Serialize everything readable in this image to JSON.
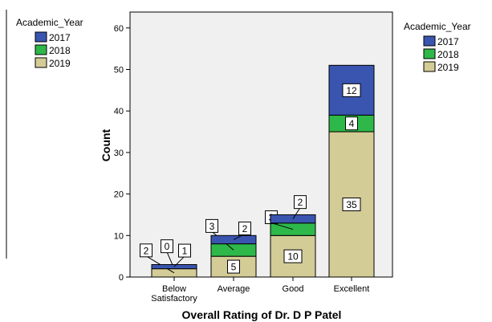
{
  "chart_data": {
    "type": "bar",
    "stacked": true,
    "xlabel": "Overall Rating of Dr. D P Patel",
    "ylabel": "Count",
    "ylim": [
      0,
      60
    ],
    "yticks": [
      "0",
      "10",
      "20",
      "30",
      "40",
      "50",
      "60"
    ],
    "categories": [
      [
        "Below",
        "Satisfactory"
      ],
      [
        "Average"
      ],
      [
        "Good"
      ],
      [
        "Excellent"
      ]
    ],
    "series": [
      {
        "name": "2019",
        "color": "#d4cc96",
        "values": [
          2,
          5,
          10,
          35
        ]
      },
      {
        "name": "2018",
        "color": "#2eb84a",
        "values": [
          0,
          3,
          3,
          4
        ]
      },
      {
        "name": "2017",
        "color": "#3a55b0",
        "values": [
          1,
          2,
          2,
          12
        ]
      }
    ],
    "legend_title": "Academic_Year",
    "legend_order": [
      "2017",
      "2018",
      "2019"
    ],
    "legend_placement": "right",
    "grid": false,
    "plot_background": "#f0f0f0"
  },
  "ghost_legend": {
    "title": "Academic_Year",
    "items": [
      "2017",
      "2018",
      "2019"
    ]
  },
  "axis": {
    "xlabel": "Overall Rating of Dr. D P Patel",
    "ylabel": "Count"
  }
}
